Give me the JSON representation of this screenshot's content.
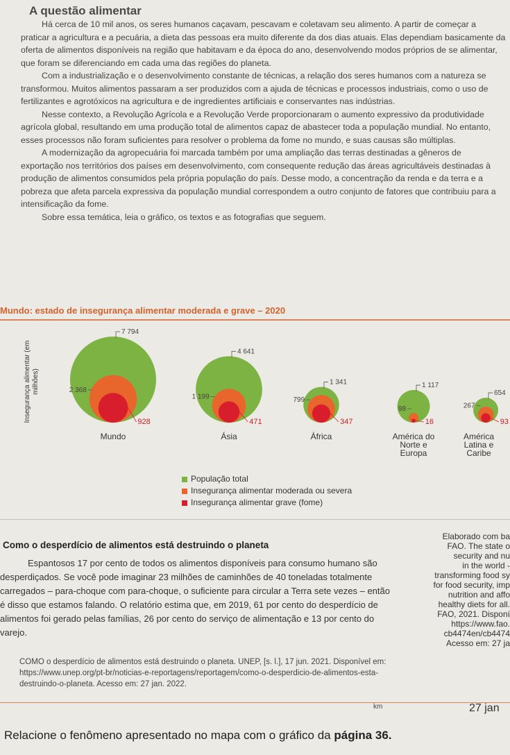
{
  "section_title": "A questão alimentar",
  "intro_paragraphs": [
    "Há cerca de 10 mil anos, os seres humanos caçavam, pescavam e coletavam seu alimento. A partir de começar a praticar a agricultura e a pecuária, a dieta das pessoas era muito diferente da dos dias atuais. Elas dependiam basicamente da oferta de alimentos disponíveis na região que habitavam e da época do ano, desenvolvendo modos próprios de se alimentar, que foram se diferenciando em cada uma das regiões do planeta.",
    "Com a industrialização e o desenvolvimento constante de técnicas, a relação dos seres humanos com a natureza se transformou. Muitos alimentos passaram a ser produzidos com a ajuda de técnicas e processos industriais, como o uso de fertilizantes e agrotóxicos na agricultura e de ingredientes artificiais e conservantes nas indústrias.",
    "Nesse contexto, a Revolução Agrícola e a Revolução Verde proporcionaram o aumento expressivo da produtividade agrícola global, resultando em uma produção total de alimentos capaz de abastecer toda a população mundial. No entanto, esses processos não foram suficientes para resolver o problema da fome no mundo, e suas causas são múltiplas.",
    "A modernização da agropecuária foi marcada também por uma ampliação das terras destinadas a gêneros de exportação nos territórios dos países em desenvolvimento, com consequente redução das áreas agricultáveis destinadas à produção de alimentos consumidos pela própria população do país. Desse modo, a concentração da renda e da terra e a pobreza que afeta parcela expressiva da população mundial correspondem a outro conjunto de fatores que contribuiu para a intensificação da fome."
  ],
  "intro_closing": "Sobre essa temática, leia o gráfico, os textos e as fotografias que seguem.",
  "chart_data": {
    "type": "bubble",
    "title": "Mundo: estado de insegurança alimentar moderada e grave – 2020",
    "ylabel": "Insegurança alimentar (em milhões)",
    "categories": [
      "Mundo",
      "Ásia",
      "África",
      "América do Norte e Europa",
      "América Latina e Caribe"
    ],
    "series": [
      {
        "name": "População total",
        "values": [
          7794,
          4641,
          1341,
          1117,
          654
        ],
        "color": "#7cb342"
      },
      {
        "name": "Insegurança alimentar moderada ou severa",
        "values": [
          2368,
          1199,
          799,
          98,
          267
        ],
        "color": "#e8652b"
      },
      {
        "name": "Insegurança alimentar grave (fome)",
        "values": [
          928,
          471,
          347,
          16,
          93
        ],
        "color": "#d81d2c"
      }
    ],
    "region_labels": [
      [
        "Mundo"
      ],
      [
        "Ásia"
      ],
      [
        "África"
      ],
      [
        "América do",
        "Norte e",
        "Europa"
      ],
      [
        "América",
        "Latina e",
        "Caribe"
      ]
    ],
    "legend": [
      "População total",
      "Insegurança alimentar moderada ou severa",
      "Insegurança alimentar grave (fome)"
    ]
  },
  "article": {
    "title": "Como o desperdício de alimentos está destruindo o planeta",
    "body": "Espantosos 17 por cento de todos os alimentos disponíveis para consumo humano são desperdiçados. Se você pode imaginar 23 milhões de caminhões de 40 toneladas totalmente carregados – para-choque com para-choque, o suficiente para circular a Terra sete vezes – então é disso que estamos falando. O relatório estima que, em 2019, 61 por cento do desperdício de alimentos foi gerado pelas famílias, 26 por cento do serviço de alimentação e 13 por cento do varejo.",
    "source": "COMO o desperdício de alimentos está destruindo o planeta. UNEP, [s. l.], 17 jun. 2021. Disponível em: https://www.unep.org/pt-br/noticias-e-reportagens/reportagem/como-o-desperdicio-de-alimentos-esta-destruindo-o-planeta. Acesso em: 27 jan. 2022."
  },
  "side_note_lines": [
    "Elaborado com ba",
    "FAO. The state o",
    "security and nu",
    "in the world -",
    "transforming food sy",
    "for food security, imp",
    "nutrition and affo",
    "healthy diets for all.",
    "FAO, 2021. Disponí",
    "https://www.fao.",
    "cb4474en/cb4474",
    "Acesso em: 27 ja"
  ],
  "km_label": "km",
  "date_tail": "27 jan",
  "question_prefix": "Relacione o fenômeno apresentado no mapa com o gráfico da ",
  "question_bold": "página 36."
}
